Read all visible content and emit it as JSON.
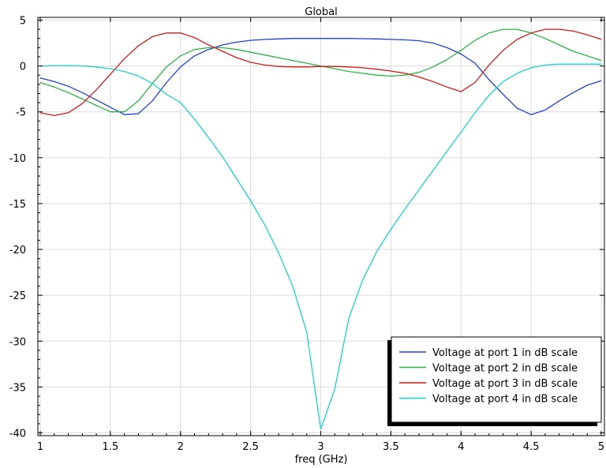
{
  "chart_data": {
    "type": "line",
    "title": "Global",
    "xlabel": "freq (GHz)",
    "ylabel": "",
    "xlim": [
      1,
      5
    ],
    "ylim": [
      -40.3,
      5.3
    ],
    "grid": true,
    "legend_position": "bottom-right",
    "x_ticks": [
      1,
      1.5,
      2,
      2.5,
      3,
      3.5,
      4,
      4.5,
      5
    ],
    "x_tick_labels": [
      "1",
      "1.5",
      "2",
      "2.5",
      "3",
      "3.5",
      "4",
      "4.5",
      "5"
    ],
    "y_ticks": [
      5,
      0,
      -5,
      -10,
      -15,
      -20,
      -25,
      -30,
      -35,
      -40
    ],
    "y_tick_labels": [
      "5",
      "0",
      "-5",
      "-10",
      "-15",
      "-20",
      "-25",
      "-30",
      "-35",
      "-40"
    ],
    "x": [
      1.0,
      1.1,
      1.2,
      1.3,
      1.4,
      1.5,
      1.6,
      1.7,
      1.8,
      1.9,
      2.0,
      2.1,
      2.2,
      2.3,
      2.4,
      2.5,
      2.6,
      2.7,
      2.8,
      2.9,
      3.0,
      3.1,
      3.2,
      3.3,
      3.4,
      3.5,
      3.6,
      3.7,
      3.8,
      3.9,
      4.0,
      4.1,
      4.2,
      4.3,
      4.4,
      4.5,
      4.6,
      4.7,
      4.8,
      4.9,
      5.0
    ],
    "series": [
      {
        "name": "Voltage at port 1 in dB scale",
        "color": "#1f3fd6",
        "values": [
          -1.3,
          -1.7,
          -2.2,
          -2.9,
          -3.7,
          -4.5,
          -5.3,
          -5.2,
          -3.8,
          -1.8,
          -0.1,
          1.1,
          1.8,
          2.3,
          2.6,
          2.8,
          2.9,
          2.95,
          3.0,
          3.0,
          3.0,
          3.0,
          3.0,
          2.98,
          2.95,
          2.9,
          2.85,
          2.75,
          2.5,
          2.0,
          1.3,
          0.3,
          -1.5,
          -3.1,
          -4.6,
          -5.3,
          -4.8,
          -3.8,
          -2.9,
          -2.1,
          -1.6
        ]
      },
      {
        "name": "Voltage at port 2 in dB scale",
        "color": "#2ab345",
        "values": [
          -1.8,
          -2.3,
          -2.9,
          -3.6,
          -4.3,
          -5.0,
          -5.0,
          -3.8,
          -1.9,
          -0.1,
          1.1,
          1.8,
          2.0,
          2.0,
          1.8,
          1.5,
          1.2,
          0.9,
          0.6,
          0.3,
          0.0,
          -0.3,
          -0.6,
          -0.8,
          -1.0,
          -1.1,
          -1.0,
          -0.7,
          -0.1,
          0.7,
          1.7,
          2.8,
          3.6,
          4.0,
          4.0,
          3.6,
          3.0,
          2.3,
          1.6,
          1.1,
          0.6
        ]
      },
      {
        "name": "Voltage at port 3 in dB scale",
        "color": "#d21a1a",
        "values": [
          -5.1,
          -5.4,
          -5.1,
          -4.1,
          -2.6,
          -0.9,
          0.8,
          2.2,
          3.2,
          3.6,
          3.6,
          3.1,
          2.3,
          1.6,
          0.9,
          0.4,
          0.1,
          -0.05,
          -0.1,
          -0.1,
          -0.05,
          -0.05,
          -0.1,
          -0.2,
          -0.35,
          -0.55,
          -0.8,
          -1.2,
          -1.7,
          -2.3,
          -2.8,
          -1.8,
          0.1,
          1.7,
          2.9,
          3.6,
          4.0,
          4.0,
          3.8,
          3.4,
          2.9
        ]
      },
      {
        "name": "Voltage at port 4 in dB scale",
        "color": "#1cd0d0",
        "values": [
          0.0,
          0.02,
          0.04,
          0.0,
          -0.1,
          -0.3,
          -0.6,
          -1.1,
          -1.9,
          -3.1,
          -4.0,
          -5.8,
          -7.8,
          -9.9,
          -12.3,
          -14.7,
          -17.3,
          -20.4,
          -24.0,
          -29.0,
          -39.6,
          -35.2,
          -27.5,
          -23.3,
          -20.2,
          -17.8,
          -15.6,
          -13.5,
          -11.4,
          -9.3,
          -7.2,
          -5.1,
          -3.2,
          -1.7,
          -0.8,
          -0.2,
          0.1,
          0.2,
          0.2,
          0.2,
          0.2
        ]
      }
    ]
  }
}
